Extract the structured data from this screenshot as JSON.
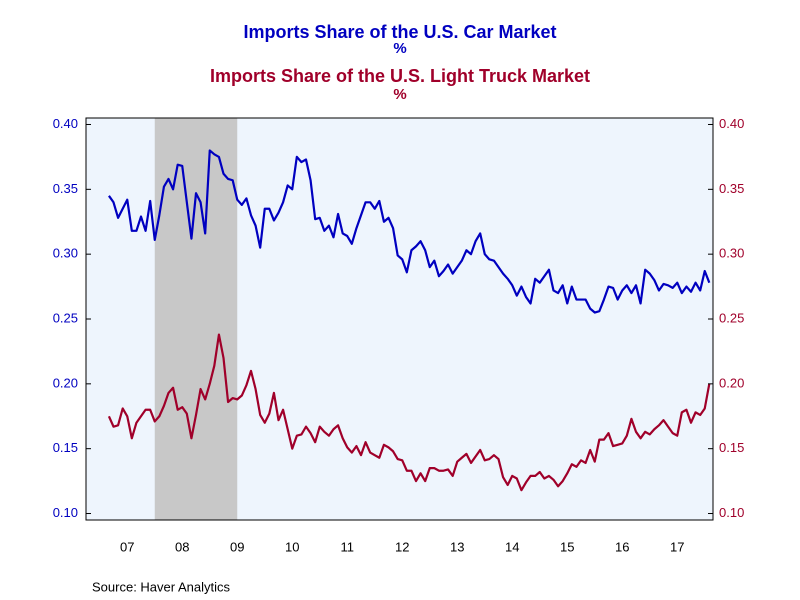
{
  "chart_data": {
    "type": "line",
    "title": "Imports Share of the U.S. Car Market",
    "subtitle": "Imports Share of the U.S. Light Truck Market",
    "title_unit": "%",
    "subtitle_unit": "%",
    "source": "Source:  Haver Analytics",
    "x": [
      2007.167,
      2007.25,
      2007.333,
      2007.417,
      2007.5,
      2007.583,
      2007.667,
      2007.75,
      2007.833,
      2007.917,
      2008,
      2008.083,
      2008.167,
      2008.25,
      2008.333,
      2008.417,
      2008.5,
      2008.583,
      2008.667,
      2008.75,
      2008.833,
      2008.917,
      2009,
      2009.083,
      2009.167,
      2009.25,
      2009.333,
      2009.417,
      2009.5,
      2009.583,
      2009.667,
      2009.75,
      2009.833,
      2009.917,
      2010,
      2010.083,
      2010.167,
      2010.25,
      2010.333,
      2010.417,
      2010.5,
      2010.583,
      2010.667,
      2010.75,
      2010.833,
      2010.917,
      2011,
      2011.083,
      2011.167,
      2011.25,
      2011.333,
      2011.417,
      2011.5,
      2011.583,
      2011.667,
      2011.75,
      2011.833,
      2011.917,
      2012,
      2012.083,
      2012.167,
      2012.25,
      2012.333,
      2012.417,
      2012.5,
      2012.583,
      2012.667,
      2012.75,
      2012.833,
      2012.917,
      2013,
      2013.083,
      2013.167,
      2013.25,
      2013.333,
      2013.417,
      2013.5,
      2013.583,
      2013.667,
      2013.75,
      2013.833,
      2013.917,
      2014,
      2014.083,
      2014.167,
      2014.25,
      2014.333,
      2014.417,
      2014.5,
      2014.583,
      2014.667,
      2014.75,
      2014.833,
      2014.917,
      2015,
      2015.083,
      2015.167,
      2015.25,
      2015.333,
      2015.417,
      2015.5,
      2015.583,
      2015.667,
      2015.75,
      2015.833,
      2015.917,
      2016,
      2016.083,
      2016.167,
      2016.25,
      2016.333,
      2016.417,
      2016.5,
      2016.583,
      2016.667,
      2016.75,
      2016.833,
      2016.917,
      2017,
      2017.083,
      2017.167,
      2017.25,
      2017.333,
      2017.417,
      2017.5,
      2017.583,
      2017.667,
      2017.75,
      2017.833,
      2017.917,
      2018,
      2018.083
    ],
    "series": [
      {
        "name": "Imports Share of the U.S. Car Market",
        "color": "#0000c0",
        "axis": "y",
        "values": [
          0.345,
          0.34,
          0.328,
          0.335,
          0.342,
          0.318,
          0.318,
          0.329,
          0.318,
          0.341,
          0.311,
          0.33,
          0.352,
          0.358,
          0.35,
          0.369,
          0.368,
          0.34,
          0.312,
          0.347,
          0.34,
          0.316,
          0.38,
          0.377,
          0.375,
          0.362,
          0.358,
          0.357,
          0.342,
          0.338,
          0.343,
          0.33,
          0.322,
          0.305,
          0.335,
          0.335,
          0.326,
          0.332,
          0.34,
          0.353,
          0.35,
          0.375,
          0.371,
          0.373,
          0.357,
          0.327,
          0.328,
          0.318,
          0.322,
          0.313,
          0.331,
          0.316,
          0.314,
          0.308,
          0.32,
          0.33,
          0.34,
          0.34,
          0.335,
          0.341,
          0.325,
          0.328,
          0.32,
          0.299,
          0.296,
          0.286,
          0.303,
          0.306,
          0.31,
          0.303,
          0.29,
          0.295,
          0.283,
          0.287,
          0.292,
          0.285,
          0.29,
          0.295,
          0.303,
          0.3,
          0.31,
          0.316,
          0.3,
          0.296,
          0.295,
          0.29,
          0.285,
          0.281,
          0.276,
          0.268,
          0.275,
          0.267,
          0.262,
          0.281,
          0.278,
          0.283,
          0.288,
          0.272,
          0.27,
          0.276,
          0.262,
          0.275,
          0.265,
          0.265,
          0.265,
          0.258,
          0.255,
          0.256,
          0.265,
          0.275,
          0.274,
          0.265,
          0.272,
          0.276,
          0.27,
          0.276,
          0.262,
          0.288,
          0.285,
          0.28,
          0.272,
          0.277,
          0.276,
          0.274,
          0.278,
          0.27,
          0.275,
          0.271,
          0.278,
          0.272,
          0.287,
          0.278
        ]
      },
      {
        "name": "Imports Share of the U.S. Light Truck Market",
        "color": "#a0002a",
        "axis": "y2",
        "values": [
          0.175,
          0.167,
          0.168,
          0.181,
          0.175,
          0.158,
          0.17,
          0.175,
          0.18,
          0.18,
          0.171,
          0.175,
          0.183,
          0.193,
          0.197,
          0.18,
          0.182,
          0.177,
          0.158,
          0.176,
          0.196,
          0.188,
          0.2,
          0.214,
          0.238,
          0.22,
          0.186,
          0.189,
          0.188,
          0.191,
          0.199,
          0.21,
          0.196,
          0.176,
          0.17,
          0.177,
          0.193,
          0.172,
          0.18,
          0.165,
          0.15,
          0.16,
          0.161,
          0.167,
          0.162,
          0.155,
          0.167,
          0.163,
          0.16,
          0.165,
          0.168,
          0.158,
          0.151,
          0.147,
          0.152,
          0.145,
          0.155,
          0.147,
          0.145,
          0.143,
          0.153,
          0.151,
          0.148,
          0.142,
          0.141,
          0.133,
          0.133,
          0.125,
          0.131,
          0.125,
          0.135,
          0.135,
          0.133,
          0.133,
          0.134,
          0.129,
          0.14,
          0.143,
          0.146,
          0.139,
          0.144,
          0.149,
          0.141,
          0.142,
          0.145,
          0.142,
          0.128,
          0.122,
          0.129,
          0.127,
          0.118,
          0.124,
          0.129,
          0.129,
          0.132,
          0.127,
          0.129,
          0.126,
          0.121,
          0.125,
          0.131,
          0.138,
          0.136,
          0.141,
          0.139,
          0.149,
          0.14,
          0.157,
          0.157,
          0.162,
          0.152,
          0.153,
          0.154,
          0.16,
          0.173,
          0.163,
          0.158,
          0.163,
          0.161,
          0.165,
          0.168,
          0.172,
          0.167,
          0.162,
          0.16,
          0.178,
          0.18,
          0.17,
          0.178,
          0.176,
          0.181,
          0.2
        ]
      }
    ],
    "shaded_regions": [
      [
        2008.0,
        2009.5
      ]
    ],
    "shade_color": "#c8c8c8",
    "plot_background": "#eef5fd",
    "xlim": [
      2006.75,
      2018.15
    ],
    "xticks": [
      {
        "value": 2007.5,
        "label": "07"
      },
      {
        "value": 2008.5,
        "label": "08"
      },
      {
        "value": 2009.5,
        "label": "09"
      },
      {
        "value": 2010.5,
        "label": "10"
      },
      {
        "value": 2011.5,
        "label": "11"
      },
      {
        "value": 2012.5,
        "label": "12"
      },
      {
        "value": 2013.5,
        "label": "13"
      },
      {
        "value": 2014.5,
        "label": "14"
      },
      {
        "value": 2015.5,
        "label": "15"
      },
      {
        "value": 2016.5,
        "label": "16"
      },
      {
        "value": 2017.5,
        "label": "17"
      }
    ],
    "ylim": [
      0.095,
      0.405
    ],
    "yticks": [
      {
        "value": 0.1,
        "label": "0.10"
      },
      {
        "value": 0.15,
        "label": "0.15"
      },
      {
        "value": 0.2,
        "label": "0.20"
      },
      {
        "value": 0.25,
        "label": "0.25"
      },
      {
        "value": 0.3,
        "label": "0.30"
      },
      {
        "value": 0.35,
        "label": "0.35"
      },
      {
        "value": 0.4,
        "label": "0.40"
      }
    ],
    "y2lim": [
      0.095,
      0.405
    ],
    "y2ticks": [
      {
        "value": 0.1,
        "label": "0.10"
      },
      {
        "value": 0.15,
        "label": "0.15"
      },
      {
        "value": 0.2,
        "label": "0.20"
      },
      {
        "value": 0.25,
        "label": "0.25"
      },
      {
        "value": 0.3,
        "label": "0.30"
      },
      {
        "value": 0.35,
        "label": "0.35"
      },
      {
        "value": 0.4,
        "label": "0.40"
      }
    ],
    "grid": false
  }
}
